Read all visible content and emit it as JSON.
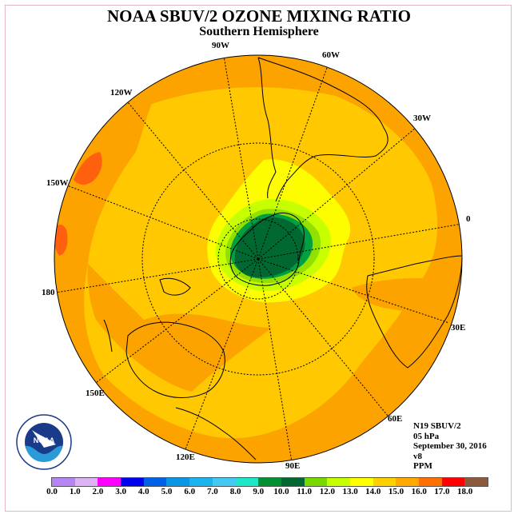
{
  "header": {
    "title": "NOAA SBUV/2 OZONE MIXING RATIO",
    "subtitle": "Southern Hemisphere"
  },
  "map": {
    "projection": "south-polar-stereographic",
    "longitude_labels": [
      "0",
      "30E",
      "60E",
      "90E",
      "120E",
      "150E",
      "180",
      "150W",
      "120W",
      "90W",
      "60W",
      "30W"
    ],
    "fill_colors": {
      "orange": "#fca300",
      "light_orange": "#ffc800",
      "yellow": "#fdfd00",
      "lime": "#c8ff00",
      "green_light": "#92e000",
      "green": "#00a040",
      "dark_green": "#006830",
      "red_orange": "#ff6010"
    }
  },
  "info": {
    "instrument": "N19 SBUV/2",
    "level": "05 hPa",
    "date": "September 30, 2016",
    "version": "v8",
    "units": "PPM"
  },
  "logo": {
    "name": "NOAA",
    "icon": "noaa-logo-icon"
  },
  "colorbar": {
    "ticks": [
      "0.0",
      "1.0",
      "2.0",
      "3.0",
      "4.0",
      "5.0",
      "6.0",
      "7.0",
      "8.0",
      "9.0",
      "10.0",
      "11.0",
      "12.0",
      "13.0",
      "14.0",
      "15.0",
      "16.0",
      "17.0",
      "18.0"
    ],
    "colors": [
      "#b784f4",
      "#dcb4f4",
      "#ff00ff",
      "#0000ee",
      "#0060e8",
      "#0a96e6",
      "#1ab4ee",
      "#44c8f4",
      "#1ee8c8",
      "#009030",
      "#006830",
      "#78d800",
      "#c8ff00",
      "#ffff00",
      "#ffd000",
      "#ffa800",
      "#ff7000",
      "#ff0000",
      "#8b5a3c"
    ]
  }
}
